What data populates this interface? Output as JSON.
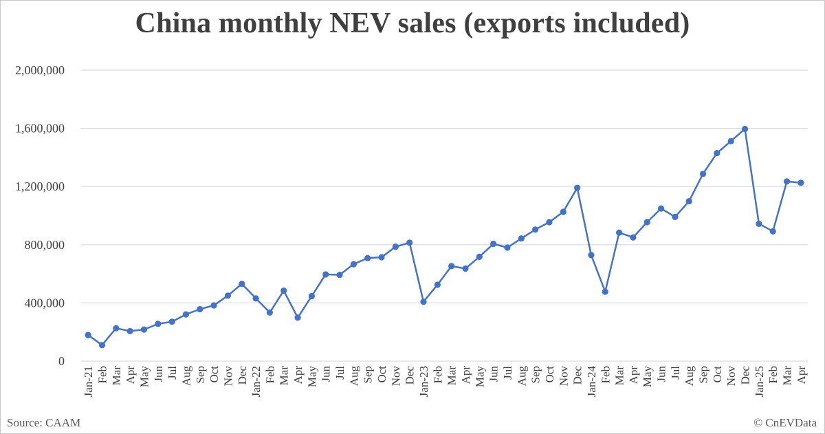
{
  "chart_data": {
    "type": "line",
    "title": "China monthly NEV sales (exports included)",
    "xlabel": "",
    "ylabel": "",
    "ylim": [
      0,
      2000000
    ],
    "y_ticks": [
      0,
      400000,
      800000,
      1200000,
      1600000,
      2000000
    ],
    "y_tick_labels": [
      "0",
      "400,000",
      "800,000",
      "1,200,000",
      "1,600,000",
      "2,000,000"
    ],
    "grid": true,
    "legend": "none",
    "line_color": "#4472C4",
    "categories": [
      "Jan-21",
      "Feb",
      "Mar",
      "Apr",
      "May",
      "Jun",
      "Jul",
      "Aug",
      "Sep",
      "Oct",
      "Nov",
      "Dec",
      "Jan-22",
      "Feb",
      "Mar",
      "Apr",
      "May",
      "Jun",
      "Jul",
      "Aug",
      "Sep",
      "Oct",
      "Nov",
      "Dec",
      "Jan-23",
      "Feb",
      "Mar",
      "Apr",
      "May",
      "Jun",
      "Jul",
      "Aug",
      "Sep",
      "Oct",
      "Nov",
      "Dec",
      "Jan-24",
      "Feb",
      "Mar",
      "Apr",
      "May",
      "Jun",
      "Jul",
      "Aug",
      "Sep",
      "Oct",
      "Nov",
      "Dec",
      "Jan-25",
      "Feb",
      "Mar",
      "Apr"
    ],
    "values": [
      179000,
      110000,
      226000,
      206000,
      217000,
      256000,
      271000,
      321000,
      357000,
      383000,
      450000,
      531000,
      431000,
      334000,
      484000,
      299000,
      447000,
      596000,
      593000,
      666000,
      708000,
      714000,
      786000,
      814000,
      408000,
      525000,
      653000,
      636000,
      717000,
      806000,
      780000,
      843000,
      904000,
      955000,
      1026000,
      1191000,
      729000,
      477000,
      883000,
      850000,
      955000,
      1049000,
      991000,
      1099000,
      1287000,
      1430000,
      1512000,
      1596000,
      944000,
      892000,
      1235000,
      1226000
    ]
  },
  "footer": {
    "source": "Source: CAAM",
    "copyright": "© CnEVData"
  }
}
